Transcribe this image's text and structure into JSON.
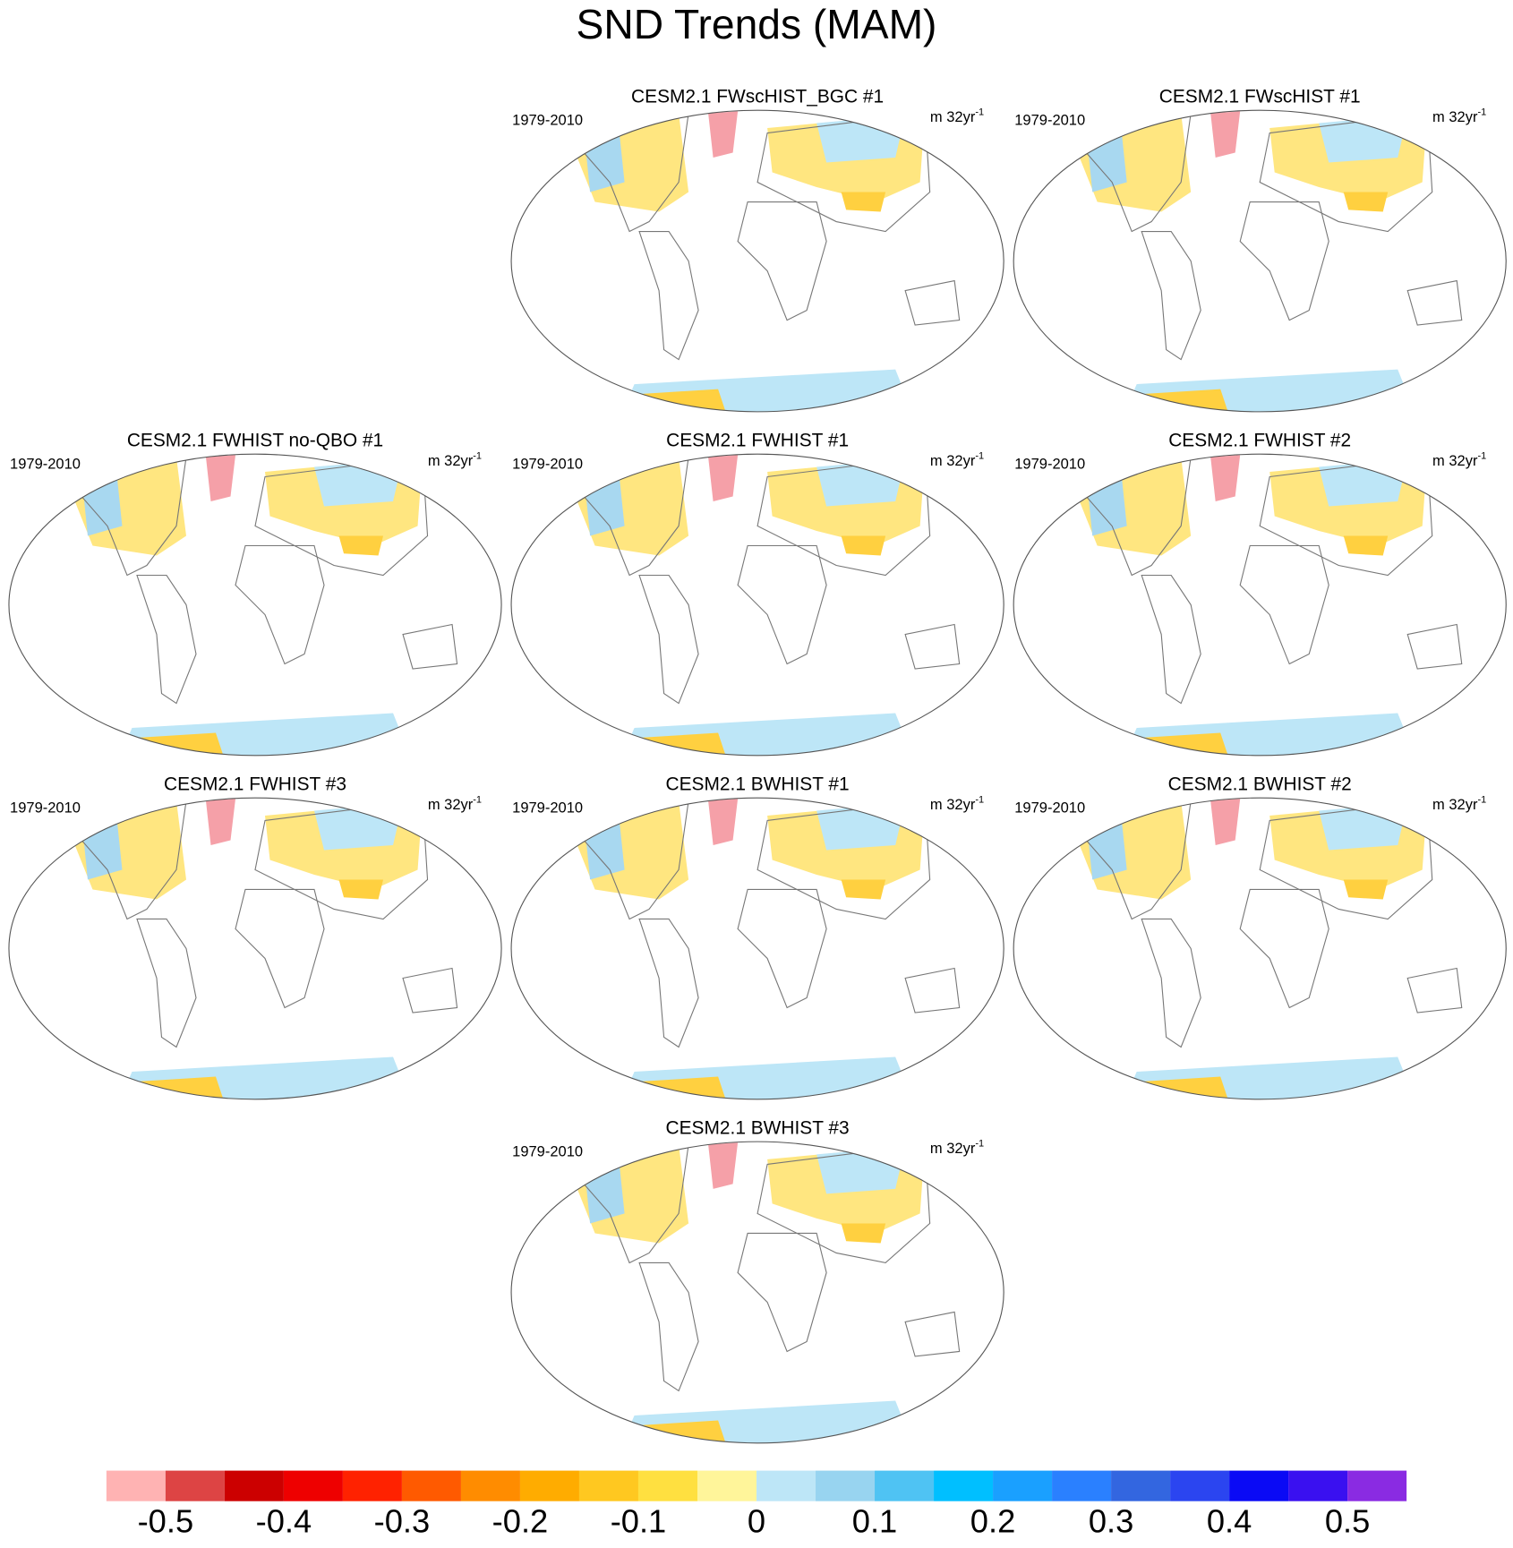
{
  "title": "SND Trends (MAM)",
  "panels": [
    {
      "title": "CESM2.1 FWscHIST_BGC #1",
      "period": "1979-2010",
      "units": "m 32yr",
      "units_exp": "-1"
    },
    {
      "title": "CESM2.1 FWscHIST #1",
      "period": "1979-2010",
      "units": "m 32yr",
      "units_exp": "-1"
    },
    {
      "title": "CESM2.1 FWHIST no-QBO #1",
      "period": "1979-2010",
      "units": "m 32yr",
      "units_exp": "-1"
    },
    {
      "title": "CESM2.1 FWHIST #1",
      "period": "1979-2010",
      "units": "m 32yr",
      "units_exp": "-1"
    },
    {
      "title": "CESM2.1 FWHIST #2",
      "period": "1979-2010",
      "units": "m 32yr",
      "units_exp": "-1"
    },
    {
      "title": "CESM2.1 FWHIST #3",
      "period": "1979-2010",
      "units": "m 32yr",
      "units_exp": "-1"
    },
    {
      "title": "CESM2.1 BWHIST #1",
      "period": "1979-2010",
      "units": "m 32yr",
      "units_exp": "-1"
    },
    {
      "title": "CESM2.1 BWHIST #2",
      "period": "1979-2010",
      "units": "m 32yr",
      "units_exp": "-1"
    },
    {
      "title": "CESM2.1 BWHIST #3",
      "period": "1979-2010",
      "units": "m 32yr",
      "units_exp": "-1"
    }
  ],
  "colorbar": {
    "colors": [
      "#ffb3b3",
      "#dd4444",
      "#cc0000",
      "#ee0000",
      "#ff2200",
      "#ff5a00",
      "#ff8c00",
      "#ffac00",
      "#ffc820",
      "#ffe040",
      "#fff59a",
      "#bde6f7",
      "#98d4f0",
      "#4fc3f3",
      "#00bfff",
      "#1aa0ff",
      "#2a80ff",
      "#3366e0",
      "#2b45f0",
      "#0a0af5",
      "#3a10f0",
      "#8a2be2"
    ],
    "ticks": [
      -0.5,
      -0.4,
      -0.3,
      -0.2,
      -0.1,
      0,
      0.1,
      0.2,
      0.3,
      0.4,
      0.5
    ]
  }
}
